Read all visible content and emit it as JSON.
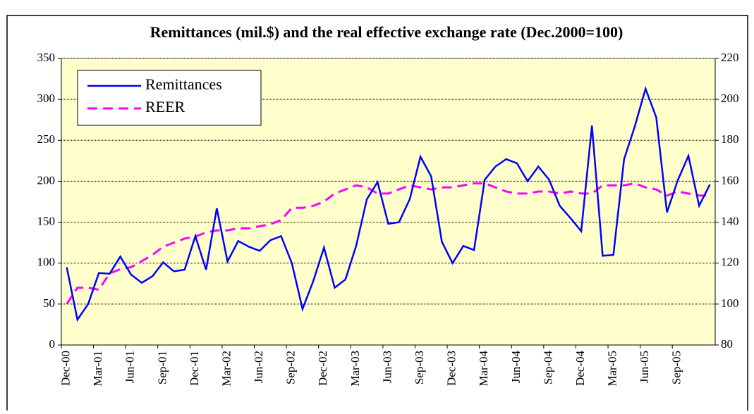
{
  "chart_data": {
    "type": "line",
    "title": "Remittances (mil.$) and the real effective exchange rate (Dec.2000=100)",
    "categories": [
      "Dec-00",
      null,
      null,
      "Mar-01",
      null,
      null,
      "Jun-01",
      null,
      null,
      "Sep-01",
      null,
      null,
      "Dec-01",
      null,
      null,
      "Mar-02",
      null,
      null,
      "Jun-02",
      null,
      null,
      "Sep-02",
      null,
      null,
      "Dec-02",
      null,
      null,
      "Mar-03",
      null,
      null,
      "Jun-03",
      null,
      null,
      "Sep-03",
      null,
      null,
      "Dec-03",
      null,
      null,
      "Mar-04",
      null,
      null,
      "Jun-04",
      null,
      null,
      "Sep-04",
      null,
      null,
      "Dec-04",
      null,
      null,
      "Mar-05",
      null,
      null,
      "Jun-05",
      null,
      null,
      "Sep-05",
      null,
      null,
      null
    ],
    "series": [
      {
        "name": "Remittances",
        "color": "#0000ff",
        "values": [
          95,
          31,
          50,
          88,
          87,
          108,
          86,
          76,
          84,
          101,
          90,
          92,
          133,
          92,
          167,
          102,
          127,
          120,
          115,
          128,
          133,
          100,
          44,
          78,
          119,
          70,
          80,
          121,
          178,
          199,
          148,
          150,
          178,
          230,
          206,
          126,
          100,
          121,
          116,
          202,
          218,
          227,
          222,
          200,
          218,
          202,
          170,
          155,
          139,
          268,
          109,
          110,
          227,
          267,
          313,
          278,
          162,
          201,
          231,
          170,
          196
        ]
      },
      {
        "name": "REER",
        "color": "#ff00ff",
        "axis": "y2",
        "dashed": true,
        "values": [
          100,
          108,
          108,
          107,
          115,
          117,
          118,
          121,
          124,
          128,
          130,
          132,
          133,
          135,
          136,
          136,
          137,
          137,
          138,
          139,
          141,
          147,
          147,
          148,
          150,
          154,
          156,
          158,
          157,
          154,
          154,
          156,
          158,
          157,
          156,
          157,
          157,
          158,
          159,
          159,
          157,
          155,
          154,
          154,
          155,
          155,
          154,
          155,
          154,
          154,
          158,
          158,
          158,
          159,
          157,
          156,
          153,
          155,
          154,
          153,
          153
        ]
      }
    ],
    "ylim": [
      0,
      350
    ],
    "yticks": [
      0,
      50,
      100,
      150,
      200,
      250,
      300,
      350
    ],
    "y2lim": [
      80,
      220
    ],
    "y2ticks": [
      80,
      100,
      120,
      140,
      160,
      180,
      200,
      220
    ],
    "grid": true,
    "legend": "upper left",
    "background": "#ffffcc"
  }
}
